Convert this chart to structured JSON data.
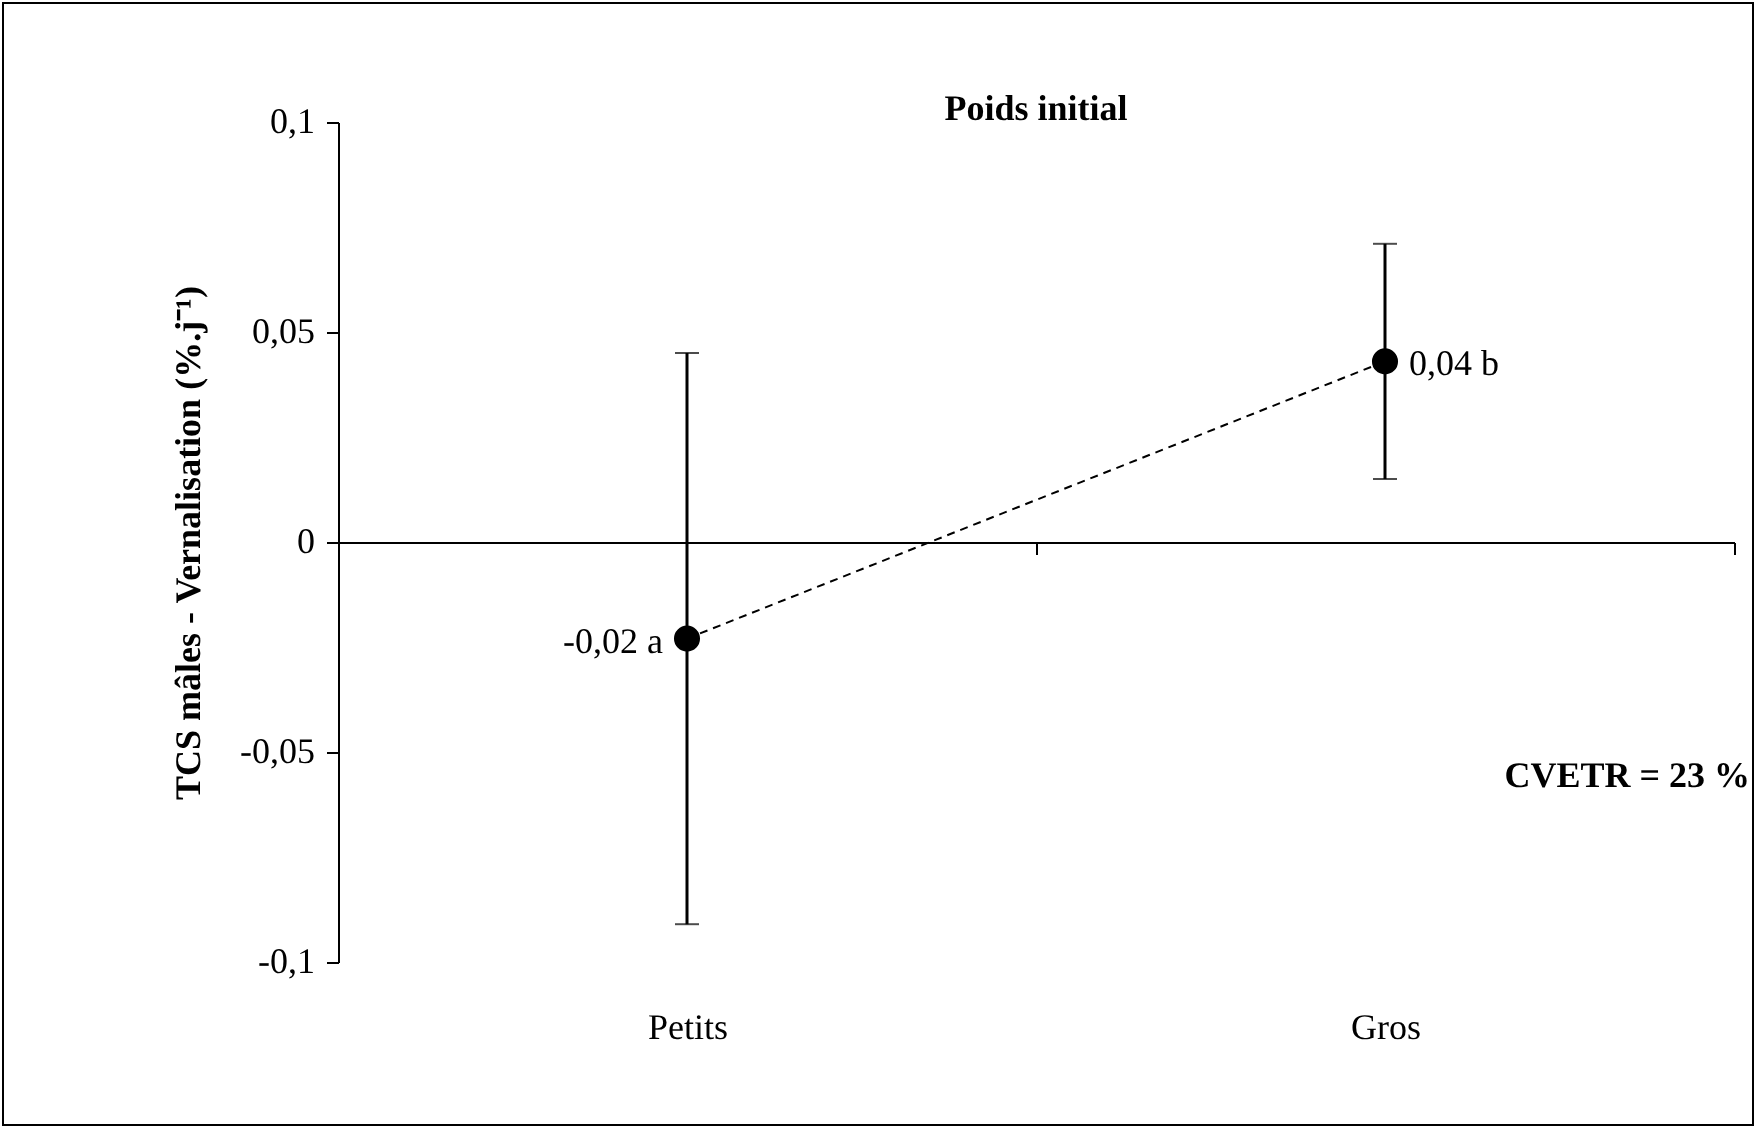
{
  "chart_data": {
    "type": "line",
    "title": "Poids initial",
    "ylabel": "TCS mâles - Vernalisation (%.j⁻¹)",
    "categories": [
      "Petits",
      "Gros"
    ],
    "series": [
      {
        "color": "#000000",
        "values": [
          -0.023,
          0.043
        ],
        "errors": [
          [
            -0.091,
            0.045
          ],
          [
            0.015,
            0.071
          ]
        ],
        "value_labels": [
          "-0,02 a",
          "0,04 b"
        ]
      }
    ],
    "ylim": [
      -0.1,
      0.1
    ],
    "yticks": [
      {
        "value": -0.1,
        "label": "-0,1"
      },
      {
        "value": -0.05,
        "label": "-0,05"
      },
      {
        "value": 0,
        "label": "0"
      },
      {
        "value": 0.05,
        "label": "0,05"
      },
      {
        "value": 0.1,
        "label": "0,1"
      }
    ],
    "marker": "circle",
    "line_style": "dashed",
    "annotations": [
      "CVETR = 23 %"
    ]
  }
}
